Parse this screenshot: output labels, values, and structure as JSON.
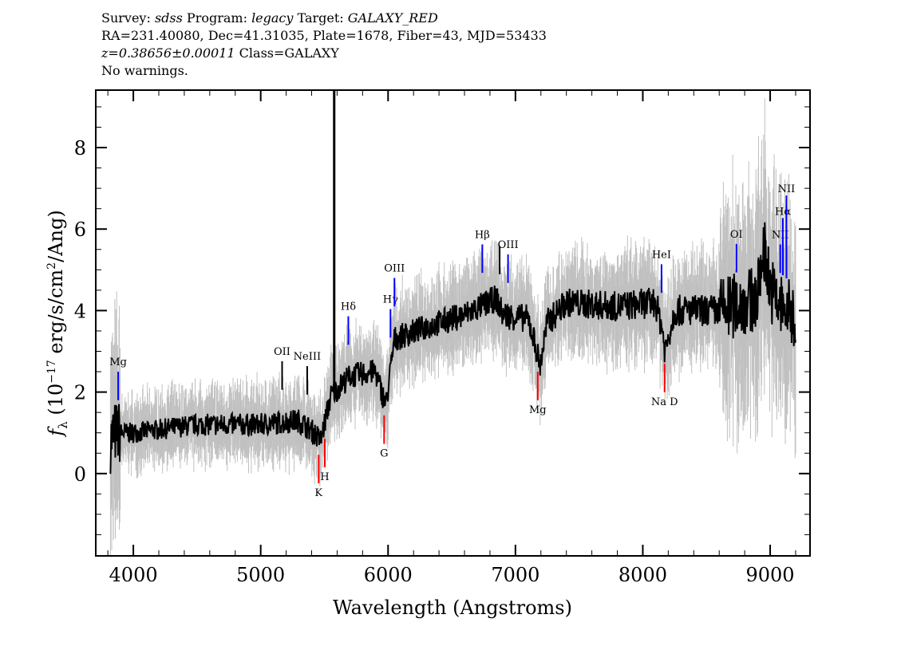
{
  "header": {
    "survey_label": "Survey:",
    "survey": "sdss",
    "program_label": "Program:",
    "program": "legacy",
    "target_label": "Target:",
    "target": "GALAXY_RED",
    "line2": "RA=231.40080, Dec=41.31035, Plate=1678, Fiber=43, MJD=53433",
    "redshift": "z=0.38656±0.00011",
    "class": "Class=GALAXY",
    "warnings": "No warnings."
  },
  "chart_data": {
    "type": "line",
    "xlabel": "Wavelength (Angstroms)",
    "ylabel": "f_λ (10^-17 erg/s/cm^2/Ang)",
    "xlim": [
      3705,
      9313
    ],
    "ylim": [
      -2.02,
      9.41
    ],
    "xticks": [
      4000,
      5000,
      6000,
      7000,
      8000,
      9000
    ],
    "yticks": [
      0,
      2,
      4,
      6,
      8
    ],
    "series": [
      {
        "color": "#000000",
        "x": [
          3820,
          3850,
          4000,
          4500,
          5000,
          5300,
          5420,
          5470,
          5550,
          5700,
          5900,
          5960,
          5985,
          6050,
          6300,
          6600,
          6850,
          6900,
          7100,
          7170,
          7190,
          7250,
          7400,
          7800,
          8100,
          8150,
          8175,
          8250,
          8600,
          8900,
          8950,
          9000,
          9050,
          9200
        ],
        "y": [
          0.8,
          1.0,
          1.0,
          1.2,
          1.2,
          1.3,
          1.0,
          0.8,
          1.9,
          2.4,
          2.5,
          1.9,
          1.7,
          3.3,
          3.6,
          3.9,
          4.3,
          3.9,
          3.8,
          3.0,
          2.6,
          3.7,
          4.2,
          4.1,
          4.2,
          3.6,
          3.0,
          4.0,
          4.0,
          4.3,
          5.6,
          4.6,
          4.2,
          3.8
        ]
      },
      {
        "color": "#c0c0c0",
        "name_hint": "error"
      }
    ],
    "sky_line": 5577,
    "lines": [
      {
        "label": "Mg",
        "wave": 3881,
        "color": "#0000ff",
        "side": "up"
      },
      {
        "label": "OII",
        "wave": 5168,
        "color": "#000000",
        "side": "up"
      },
      {
        "label": "NeIII",
        "wave": 5365,
        "color": "#000000",
        "side": "up"
      },
      {
        "label": "K",
        "wave": 5455,
        "color": "#ff0000",
        "side": "down"
      },
      {
        "label": "H",
        "wave": 5503,
        "color": "#ff0000",
        "side": "down"
      },
      {
        "label": "Hδ",
        "wave": 5688,
        "color": "#0000ff",
        "side": "up"
      },
      {
        "label": "G",
        "wave": 5969,
        "color": "#ff0000",
        "side": "down"
      },
      {
        "label": "Hγ",
        "wave": 6019,
        "color": "#0000ff",
        "side": "up"
      },
      {
        "label": "OIII",
        "wave": 6050,
        "color": "#0000ff",
        "side": "up"
      },
      {
        "label": "Hβ",
        "wave": 6740,
        "color": "#0000ff",
        "side": "up"
      },
      {
        "label": "",
        "wave": 6876,
        "color": "#000000",
        "side": "up"
      },
      {
        "label": "OIII",
        "wave": 6942,
        "color": "#0000ff",
        "side": "up"
      },
      {
        "label": "Mg",
        "wave": 7175,
        "color": "#ff0000",
        "side": "down"
      },
      {
        "label": "HeI",
        "wave": 8147,
        "color": "#0000ff",
        "side": "up"
      },
      {
        "label": "Na D",
        "wave": 8171,
        "color": "#ff0000",
        "side": "down"
      },
      {
        "label": "OI",
        "wave": 8735,
        "color": "#0000ff",
        "side": "up"
      },
      {
        "label": "NII",
        "wave": 9079,
        "color": "#0000ff",
        "side": "up"
      },
      {
        "label": "Hα",
        "wave": 9100,
        "color": "#0000ff",
        "side": "up"
      },
      {
        "label": "NII",
        "wave": 9128,
        "color": "#0000ff",
        "side": "up"
      }
    ]
  }
}
